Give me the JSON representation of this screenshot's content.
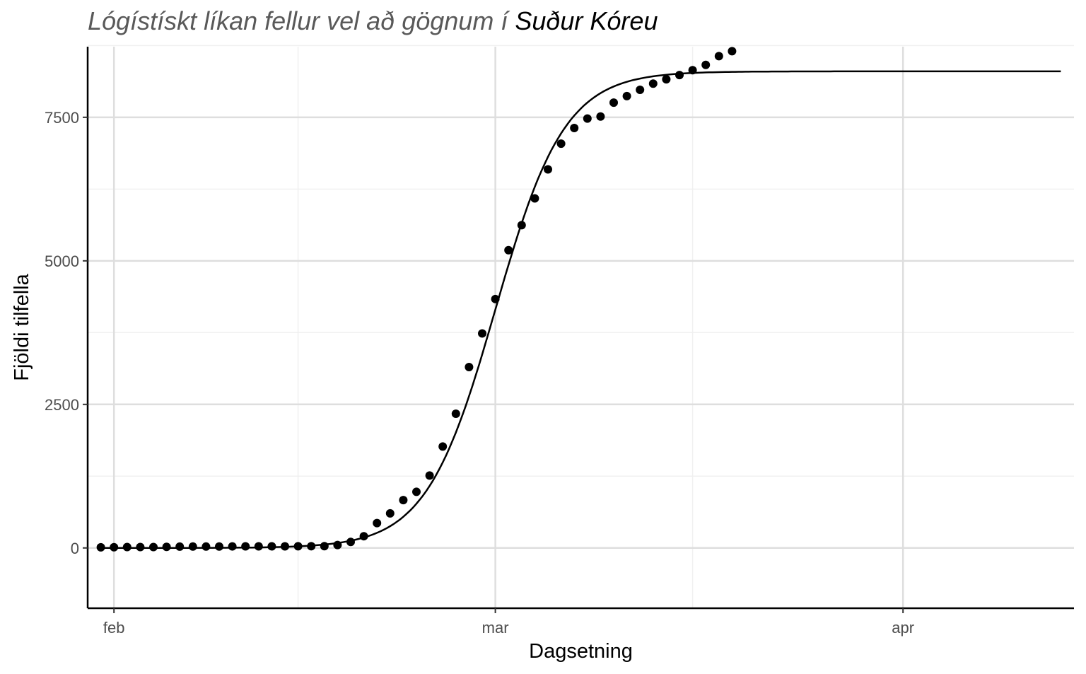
{
  "title": {
    "prefix": "Lógístískt líkan fellur vel að gögnum í",
    "country": "Suður Kóreu"
  },
  "chart_data": {
    "type": "scatter",
    "xlabel": "Dagsetning",
    "ylabel": "Fjöldi tilfella",
    "xlim": [
      "2020-01-30",
      "2020-04-14"
    ],
    "ylim": [
      -1050,
      8730
    ],
    "x_ticks": [
      {
        "label": "feb",
        "date": "2020-02-01"
      },
      {
        "label": "mar",
        "date": "2020-03-01"
      },
      {
        "label": "apr",
        "date": "2020-04-01"
      }
    ],
    "x_minor_ticks": [
      "2020-02-15",
      "2020-03-16",
      "2020-04-15"
    ],
    "y_ticks": [
      0,
      2500,
      5000,
      7500
    ],
    "y_minor_ticks": [
      1250,
      3750,
      6250,
      8750
    ],
    "grid": true,
    "series": [
      {
        "kind": "points",
        "x": [
          "2020-01-31",
          "2020-02-01",
          "2020-02-02",
          "2020-02-03",
          "2020-02-04",
          "2020-02-05",
          "2020-02-06",
          "2020-02-07",
          "2020-02-08",
          "2020-02-09",
          "2020-02-10",
          "2020-02-11",
          "2020-02-12",
          "2020-02-13",
          "2020-02-14",
          "2020-02-15",
          "2020-02-16",
          "2020-02-17",
          "2020-02-18",
          "2020-02-19",
          "2020-02-20",
          "2020-02-21",
          "2020-02-22",
          "2020-02-23",
          "2020-02-24",
          "2020-02-25",
          "2020-02-26",
          "2020-02-27",
          "2020-02-28",
          "2020-02-29",
          "2020-03-01",
          "2020-03-02",
          "2020-03-03",
          "2020-03-04",
          "2020-03-05",
          "2020-03-06",
          "2020-03-07",
          "2020-03-08",
          "2020-03-09",
          "2020-03-10",
          "2020-03-11",
          "2020-03-12",
          "2020-03-13",
          "2020-03-14",
          "2020-03-15",
          "2020-03-16",
          "2020-03-17",
          "2020-03-18",
          "2020-03-19"
        ],
        "y": [
          11,
          12,
          15,
          15,
          16,
          19,
          23,
          24,
          24,
          25,
          27,
          28,
          28,
          28,
          28,
          29,
          30,
          31,
          51,
          104,
          204,
          433,
          602,
          833,
          977,
          1261,
          1766,
          2337,
          3150,
          3736,
          4335,
          5186,
          5621,
          6088,
          6593,
          7041,
          7314,
          7478,
          7513,
          7755,
          7869,
          7979,
          8086,
          8162,
          8236,
          8320,
          8413,
          8565,
          8652
        ]
      },
      {
        "kind": "logistic-fit",
        "K": 8300,
        "r": 0.38,
        "t0": "2020-03-01",
        "from": "2020-01-31",
        "to": "2020-04-13"
      }
    ]
  }
}
